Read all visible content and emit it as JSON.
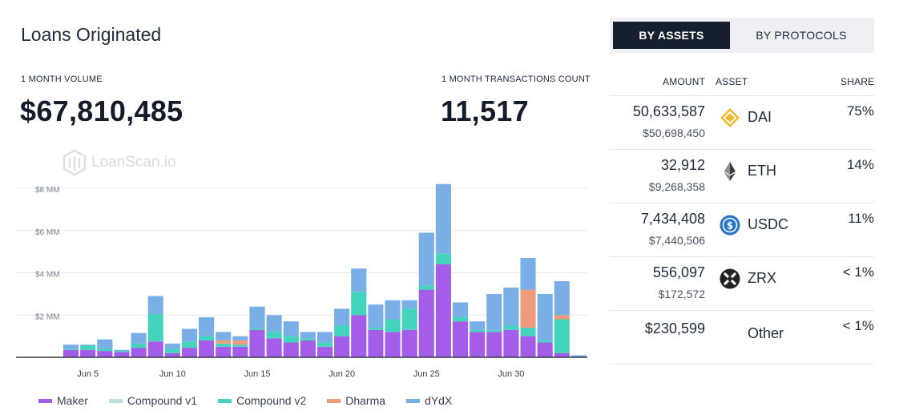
{
  "header": {
    "title": "Loans Originated",
    "watermark": "LoanScan.io"
  },
  "metrics": {
    "volume_label": "1 MONTH VOLUME",
    "volume_value": "$67,810,485",
    "tx_label": "1 MONTH TRANSACTIONS COUNT",
    "tx_value": "11,517"
  },
  "toggle": {
    "assets_label": "BY ASSETS",
    "protocols_label": "BY PROTOCOLS",
    "active": "assets"
  },
  "table": {
    "headers": {
      "amount": "AMOUNT",
      "asset": "ASSET",
      "share": "SHARE"
    },
    "rows": [
      {
        "amount": "50,633,587",
        "usd": "$50,698,450",
        "asset": "DAI",
        "share": "75%",
        "icon": "dai-icon"
      },
      {
        "amount": "32,912",
        "usd": "$9,268,358",
        "asset": "ETH",
        "share": "14%",
        "icon": "eth-icon"
      },
      {
        "amount": "7,434,408",
        "usd": "$7,440,506",
        "asset": "USDC",
        "share": "11%",
        "icon": "usdc-icon"
      },
      {
        "amount": "556,097",
        "usd": "$172,572",
        "asset": "ZRX",
        "share": "< 1%",
        "icon": "zrx-icon"
      },
      {
        "amount": "$230,599",
        "usd": "",
        "asset": "Other",
        "share": "< 1%",
        "icon": ""
      }
    ]
  },
  "colors": {
    "maker": "#a35de8",
    "compound_v1": "#bfe0dc",
    "compound_v2": "#44d4be",
    "dharma": "#ee9a7c",
    "dydx": "#79aee6",
    "dai": "#f4b731",
    "usdc": "#2775ca"
  },
  "chart_data": {
    "type": "bar",
    "stacked": true,
    "ylim": [
      0,
      8
    ],
    "y_ticks": [
      2,
      4,
      6,
      8
    ],
    "y_tick_labels": [
      "$2 MM",
      "$4 MM",
      "$6 MM",
      "$8 MM"
    ],
    "x_tick_labels": [
      "Jun 5",
      "Jun 10",
      "Jun 15",
      "Jun 20",
      "Jun 25",
      "Jun 30"
    ],
    "x_tick_categories": [
      "Jun 5",
      "Jun 10",
      "Jun 15",
      "Jun 20",
      "Jun 25",
      "Jun 30"
    ],
    "grid": true,
    "legend_position": "bottom-left",
    "categories": [
      "Jun 4",
      "Jun 5",
      "Jun 6",
      "Jun 7",
      "Jun 8",
      "Jun 9",
      "Jun 10",
      "Jun 11",
      "Jun 12",
      "Jun 13",
      "Jun 14",
      "Jun 15",
      "Jun 16",
      "Jun 17",
      "Jun 18",
      "Jun 19",
      "Jun 20",
      "Jun 21",
      "Jun 22",
      "Jun 23",
      "Jun 24",
      "Jun 25",
      "Jun 26",
      "Jun 27",
      "Jun 28",
      "Jun 29",
      "Jun 30",
      "Jul 1",
      "Jul 2",
      "Jul 3",
      "Jul 4"
    ],
    "series": [
      {
        "name": "Maker",
        "color_key": "maker",
        "values": [
          0.35,
          0.35,
          0.3,
          0.25,
          0.45,
          0.75,
          0.2,
          0.45,
          0.8,
          0.5,
          0.5,
          1.3,
          0.9,
          0.7,
          0.8,
          0.5,
          1.0,
          2.0,
          1.3,
          1.2,
          1.3,
          3.2,
          4.4,
          1.7,
          1.2,
          1.2,
          1.3,
          1.0,
          0.7,
          0.2,
          0.0
        ]
      },
      {
        "name": "Compound v1",
        "color_key": "compound_v1",
        "values": [
          0,
          0,
          0,
          0,
          0,
          0,
          0,
          0,
          0,
          0,
          0,
          0,
          0,
          0,
          0,
          0,
          0,
          0,
          0,
          0,
          0,
          0,
          0,
          0,
          0,
          0,
          0,
          0,
          0,
          0,
          0
        ]
      },
      {
        "name": "Compound v2",
        "color_key": "compound_v2",
        "values": [
          0.05,
          0.2,
          0.1,
          0.05,
          0.2,
          1.3,
          0.2,
          0.3,
          0.2,
          0.15,
          0.1,
          0.1,
          0.3,
          0.3,
          0.1,
          0.2,
          0.5,
          1.1,
          0.1,
          0.6,
          1.0,
          0.2,
          0.5,
          0.2,
          0.1,
          0.1,
          0.2,
          0.4,
          0.1,
          1.6,
          0.0
        ]
      },
      {
        "name": "Dharma",
        "color_key": "dharma",
        "values": [
          0,
          0,
          0,
          0,
          0,
          0,
          0,
          0,
          0,
          0.15,
          0.2,
          0,
          0,
          0,
          0,
          0,
          0,
          0,
          0,
          0,
          0,
          0,
          0,
          0,
          0,
          0,
          0,
          1.8,
          0,
          0.2,
          0
        ]
      },
      {
        "name": "dYdX",
        "color_key": "dydx",
        "values": [
          0.2,
          0.05,
          0.45,
          0.05,
          0.5,
          0.85,
          0.25,
          0.6,
          0.9,
          0.4,
          0.2,
          1.0,
          0.8,
          0.7,
          0.3,
          0.5,
          0.8,
          1.1,
          1.1,
          0.9,
          0.4,
          2.5,
          3.3,
          0.7,
          0.4,
          1.7,
          1.8,
          1.5,
          2.2,
          1.6,
          0.1
        ]
      }
    ]
  }
}
